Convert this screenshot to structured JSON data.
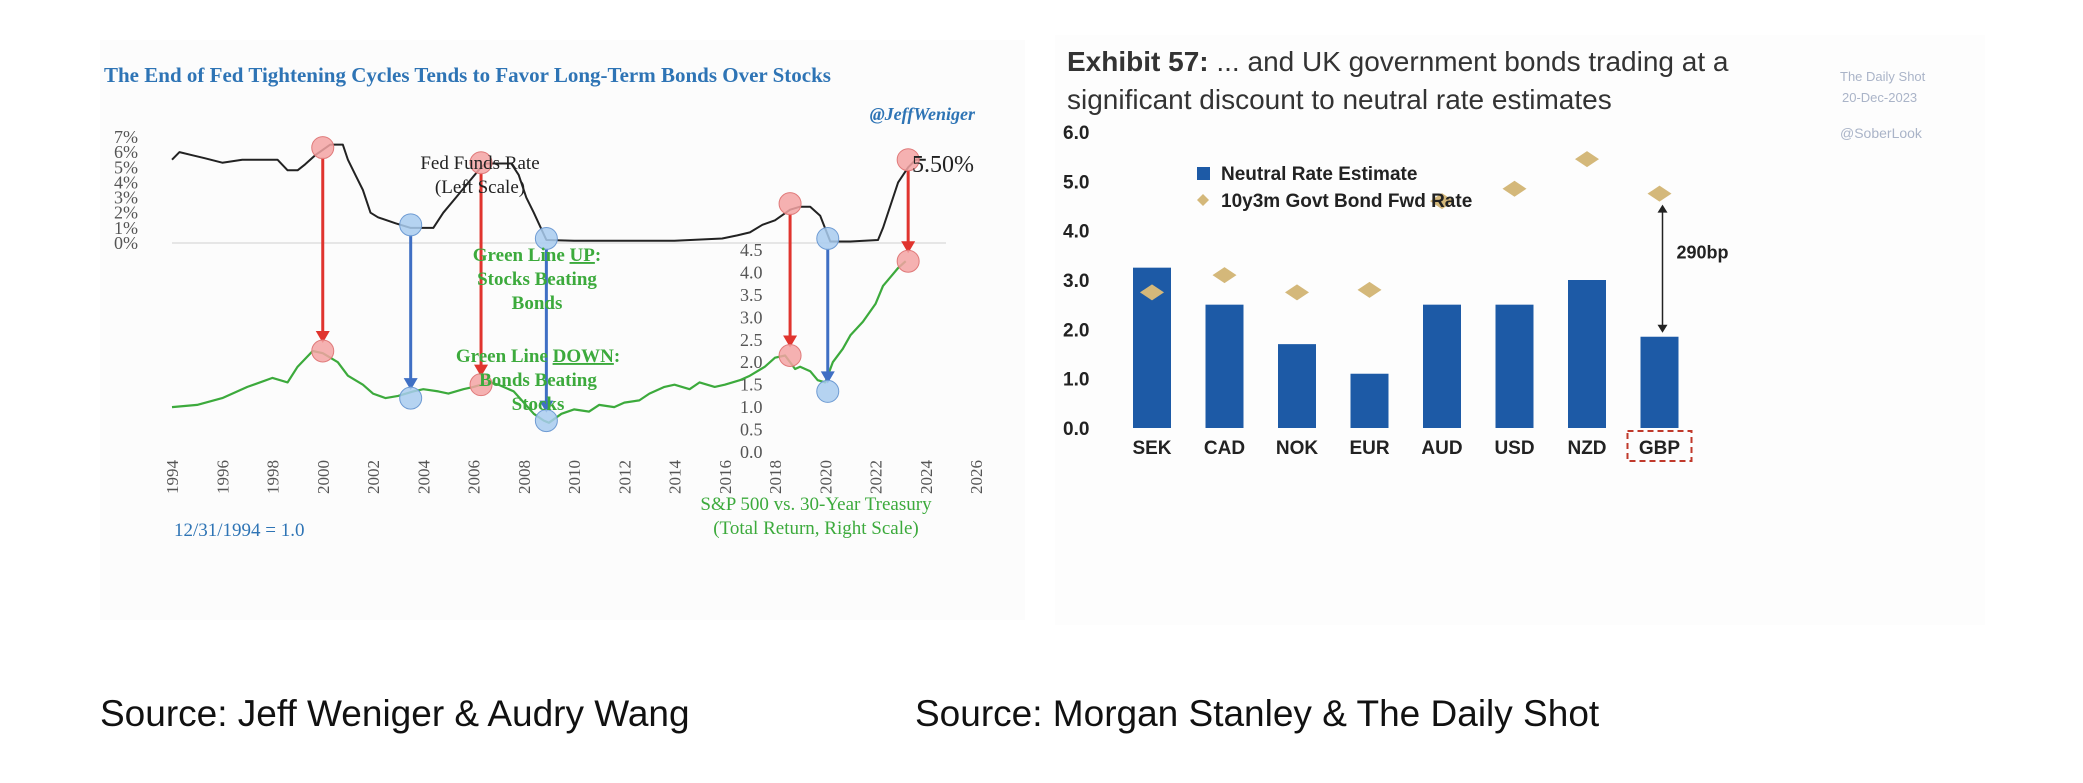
{
  "chart_data": [
    {
      "type": "line",
      "title": "The End of Fed Tightening Cycles Tends to Favor Long-Term Bonds Over Stocks",
      "handle": "@JeffWeniger",
      "x": {
        "label": "",
        "range": [
          1994,
          2026
        ],
        "ticks": [
          "1994",
          "1996",
          "1998",
          "2000",
          "2002",
          "2004",
          "2006",
          "2008",
          "2010",
          "2012",
          "2014",
          "2016",
          "2018",
          "2020",
          "2022",
          "2024",
          "2026"
        ]
      },
      "y_left": {
        "ticks": [
          "7%",
          "6%",
          "5%",
          "4%",
          "3%",
          "2%",
          "1%",
          "0%"
        ],
        "range": [
          0,
          7
        ]
      },
      "y_right": {
        "ticks": [
          "4.5",
          "4.0",
          "3.5",
          "3.0",
          "2.5",
          "2.0",
          "1.5",
          "1.0",
          "0.5",
          "0.0"
        ],
        "range": [
          0,
          4.5
        ]
      },
      "series": [
        {
          "name": "Fed Funds Rate",
          "axis": "left",
          "color": "#222222",
          "points": [
            [
              1994.0,
              5.5
            ],
            [
              1994.3,
              6.0
            ],
            [
              1994.8,
              5.8
            ],
            [
              1995.3,
              5.6
            ],
            [
              1996.0,
              5.3
            ],
            [
              1996.8,
              5.5
            ],
            [
              1997.5,
              5.5
            ],
            [
              1998.2,
              5.5
            ],
            [
              1998.6,
              4.8
            ],
            [
              1999.0,
              4.8
            ],
            [
              1999.3,
              5.2
            ],
            [
              1999.7,
              5.8
            ],
            [
              2000.3,
              6.5
            ],
            [
              2000.8,
              6.5
            ],
            [
              2001.0,
              5.5
            ],
            [
              2001.3,
              4.5
            ],
            [
              2001.6,
              3.5
            ],
            [
              2001.9,
              2.0
            ],
            [
              2002.2,
              1.7
            ],
            [
              2002.9,
              1.3
            ],
            [
              2003.5,
              1.0
            ],
            [
              2004.4,
              1.0
            ],
            [
              2004.8,
              2.0
            ],
            [
              2005.3,
              3.0
            ],
            [
              2005.8,
              4.0
            ],
            [
              2006.3,
              5.0
            ],
            [
              2006.5,
              5.25
            ],
            [
              2007.5,
              5.25
            ],
            [
              2007.8,
              4.5
            ],
            [
              2008.1,
              3.0
            ],
            [
              2008.4,
              2.0
            ],
            [
              2008.9,
              0.2
            ],
            [
              2010.0,
              0.15
            ],
            [
              2012.0,
              0.15
            ],
            [
              2014.0,
              0.15
            ],
            [
              2015.9,
              0.3
            ],
            [
              2016.5,
              0.5
            ],
            [
              2017.0,
              0.7
            ],
            [
              2017.5,
              1.2
            ],
            [
              2018.0,
              1.5
            ],
            [
              2018.6,
              2.2
            ],
            [
              2019.0,
              2.4
            ],
            [
              2019.4,
              2.4
            ],
            [
              2019.8,
              1.8
            ],
            [
              2020.2,
              0.1
            ],
            [
              2021.0,
              0.1
            ],
            [
              2022.1,
              0.2
            ],
            [
              2022.3,
              1.0
            ],
            [
              2022.6,
              2.5
            ],
            [
              2022.9,
              4.0
            ],
            [
              2023.3,
              5.0
            ],
            [
              2023.6,
              5.5
            ],
            [
              2024.0,
              5.5
            ]
          ]
        },
        {
          "name": "S&P 500 vs. 30-Year Treasury (Total Return, Right Scale)",
          "axis": "right",
          "color": "#3caa3c",
          "points": [
            [
              1994.0,
              1.0
            ],
            [
              1995.0,
              1.05
            ],
            [
              1996.0,
              1.2
            ],
            [
              1997.0,
              1.45
            ],
            [
              1998.0,
              1.65
            ],
            [
              1998.6,
              1.55
            ],
            [
              1999.0,
              1.9
            ],
            [
              1999.6,
              2.25
            ],
            [
              2000.0,
              2.2
            ],
            [
              2000.6,
              2.0
            ],
            [
              2001.0,
              1.7
            ],
            [
              2001.6,
              1.5
            ],
            [
              2002.0,
              1.3
            ],
            [
              2002.5,
              1.2
            ],
            [
              2003.0,
              1.25
            ],
            [
              2003.6,
              1.35
            ],
            [
              2004.0,
              1.4
            ],
            [
              2004.6,
              1.35
            ],
            [
              2005.0,
              1.3
            ],
            [
              2005.6,
              1.4
            ],
            [
              2006.0,
              1.45
            ],
            [
              2006.6,
              1.55
            ],
            [
              2007.0,
              1.5
            ],
            [
              2007.6,
              1.35
            ],
            [
              2008.0,
              1.1
            ],
            [
              2008.4,
              0.85
            ],
            [
              2008.8,
              0.7
            ],
            [
              2009.0,
              0.65
            ],
            [
              2009.5,
              0.85
            ],
            [
              2010.0,
              0.95
            ],
            [
              2010.6,
              0.9
            ],
            [
              2011.0,
              1.05
            ],
            [
              2011.6,
              1.0
            ],
            [
              2012.0,
              1.1
            ],
            [
              2012.6,
              1.15
            ],
            [
              2013.0,
              1.3
            ],
            [
              2013.6,
              1.45
            ],
            [
              2014.0,
              1.5
            ],
            [
              2014.6,
              1.4
            ],
            [
              2015.0,
              1.55
            ],
            [
              2015.6,
              1.45
            ],
            [
              2016.0,
              1.5
            ],
            [
              2016.6,
              1.6
            ],
            [
              2017.0,
              1.7
            ],
            [
              2017.6,
              1.9
            ],
            [
              2018.0,
              2.1
            ],
            [
              2018.4,
              2.15
            ],
            [
              2018.8,
              1.85
            ],
            [
              2019.0,
              1.9
            ],
            [
              2019.4,
              1.8
            ],
            [
              2019.7,
              1.6
            ],
            [
              2020.0,
              1.55
            ],
            [
              2020.3,
              2.0
            ],
            [
              2020.7,
              2.3
            ],
            [
              2021.0,
              2.6
            ],
            [
              2021.5,
              2.9
            ],
            [
              2022.0,
              3.3
            ],
            [
              2022.3,
              3.7
            ],
            [
              2022.6,
              3.9
            ],
            [
              2022.9,
              4.1
            ],
            [
              2023.2,
              4.25
            ]
          ]
        }
      ],
      "markers": {
        "red": [
          [
            2000.0,
            6.3,
            "left"
          ],
          [
            2000.0,
            2.25,
            "right"
          ],
          [
            2006.3,
            5.3,
            "left"
          ],
          [
            2006.3,
            1.5,
            "right"
          ],
          [
            2018.6,
            2.6,
            "left"
          ],
          [
            2018.6,
            2.15,
            "right"
          ],
          [
            2023.3,
            5.5,
            "left"
          ],
          [
            2023.3,
            4.25,
            "right"
          ]
        ],
        "blue": [
          [
            2003.5,
            1.2,
            "left"
          ],
          [
            2003.5,
            1.2,
            "right"
          ],
          [
            2008.9,
            0.3,
            "left"
          ],
          [
            2008.9,
            0.7,
            "right"
          ],
          [
            2020.1,
            0.3,
            "left"
          ],
          [
            2020.1,
            1.35,
            "right"
          ]
        ]
      },
      "annotations": {
        "fed_label_1": "Fed Funds Rate",
        "fed_label_2": "(Left Scale)",
        "fed_end_value": "5.50%",
        "up_line_1": "Green Line ",
        "up_word": "UP",
        "up_line_1_end": ":",
        "up_line_2": "Stocks Beating",
        "up_line_3": "Bonds",
        "down_line_1": "Green Line ",
        "down_word": "DOWN",
        "down_line_1_end": ":",
        "down_line_2": "Bonds Beating",
        "down_line_3": "Stocks",
        "spx_line_1": "S&P 500 vs. 30-Year Treasury",
        "spx_line_2": "(Total Return, Right Scale)",
        "base_note": "12/31/1994 = 1.0"
      }
    },
    {
      "type": "bar",
      "exhibit_label": "Exhibit 57:",
      "title_line_1": " ... and UK government bonds trading at a",
      "title_line_2": "significant discount to neutral rate estimates",
      "watermark_1": "The Daily Shot",
      "watermark_2": "20-Dec-2023",
      "watermark_3": "@SoberLook",
      "categories": [
        "SEK",
        "CAD",
        "NOK",
        "EUR",
        "AUD",
        "USD",
        "NZD",
        "GBP"
      ],
      "highlight_category": "GBP",
      "series": [
        {
          "name": "Neutral Rate Estimate",
          "type": "bar",
          "color": "#1d5aa6",
          "values": [
            3.25,
            2.5,
            1.7,
            1.1,
            2.5,
            2.5,
            3.0,
            1.85
          ]
        },
        {
          "name": "10y3m Govt Bond Fwd Rate",
          "type": "marker",
          "color": "#d4b87a",
          "values": [
            2.75,
            3.1,
            2.75,
            2.8,
            4.6,
            4.85,
            5.45,
            4.75
          ]
        }
      ],
      "ylim": [
        0,
        6
      ],
      "yticks": [
        "0.0",
        "1.0",
        "2.0",
        "3.0",
        "4.0",
        "5.0",
        "6.0"
      ],
      "gap_annotation": "290bp"
    }
  ],
  "captions": {
    "left": "Source: Jeff Weniger & Audry Wang",
    "right": "Source: Morgan Stanley & The Daily Shot"
  }
}
